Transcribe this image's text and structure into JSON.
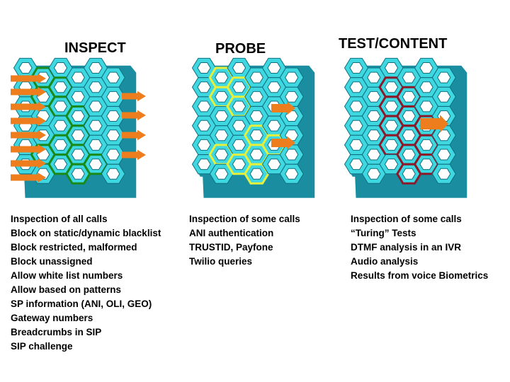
{
  "panels": [
    {
      "id": "inspect",
      "title": "INSPECT",
      "highlight_color": "#1a8a1a",
      "items": [
        "Inspection of all calls",
        "Block on static/dynamic blacklist",
        "Block restricted, malformed",
        "Block unassigned",
        "Allow white list numbers",
        "Allow based on patterns",
        "SP information (ANI, OLI, GEO)",
        "Gateway numbers",
        "Breadcrumbs in SIP",
        "SIP challenge"
      ]
    },
    {
      "id": "probe",
      "title": "PROBE",
      "highlight_color": "#e6f03c",
      "items": [
        "Inspection of some calls",
        "ANI authentication",
        "TRUSTID, Payfone",
        "Twilio queries"
      ]
    },
    {
      "id": "test",
      "title": "TEST/CONTENT",
      "highlight_color": "#8b1a2a",
      "items": [
        "Inspection of some calls",
        "“Turing” Tests",
        "DTMF analysis in an IVR",
        "Audio analysis",
        "Results from voice Biometrics"
      ]
    }
  ],
  "colors": {
    "cell_face": "#3fd7e0",
    "cell_side": "#1a8ea0",
    "cell_inner": "#ffffff",
    "arrow": "#ee7d1e"
  }
}
